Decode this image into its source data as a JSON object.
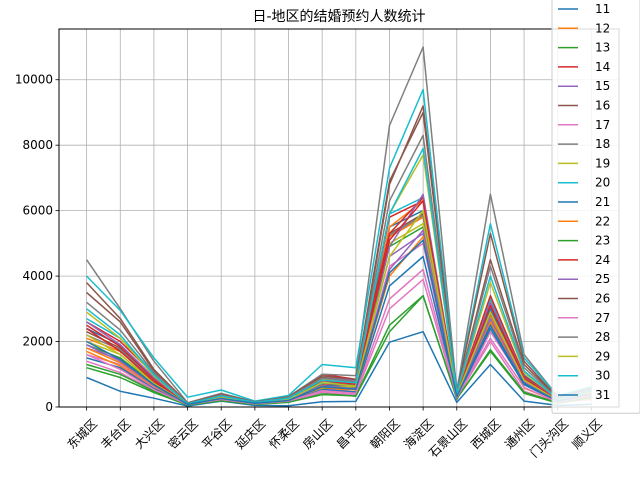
{
  "chart_data": {
    "type": "line",
    "title": "日-地区的结婚预约人数统计",
    "xlabel": "",
    "ylabel": "",
    "categories": [
      "东城区",
      "丰台区",
      "大兴区",
      "密云区",
      "平谷区",
      "延庆区",
      "怀柔区",
      "房山区",
      "昌平区",
      "朝阳区",
      "海淀区",
      "石景山区",
      "西城区",
      "通州区",
      "门头沟区",
      "顺义区"
    ],
    "yticks": [
      0,
      2000,
      4000,
      6000,
      8000,
      10000
    ],
    "ylim": [
      0,
      11550
    ],
    "grid": true,
    "legend_position": "top-right",
    "legend_visible": [
      "11",
      "12",
      "13",
      "14",
      "15",
      "16",
      "17",
      "18",
      "19",
      "20",
      "21",
      "22",
      "23",
      "24",
      "25",
      "26",
      "27",
      "28",
      "29",
      "30",
      "31"
    ],
    "series": [
      {
        "name": "",
        "color": "#1f77b4",
        "values": [
          2400,
          1900,
          900,
          80,
          300,
          150,
          200,
          650,
          700,
          5500,
          6000,
          280,
          3000,
          900,
          200,
          300
        ]
      },
      {
        "name": "",
        "color": "#ff7f0e",
        "values": [
          2100,
          1700,
          800,
          90,
          280,
          140,
          180,
          600,
          650,
          5200,
          5800,
          260,
          2800,
          850,
          180,
          280
        ]
      },
      {
        "name": "",
        "color": "#2ca02c",
        "values": [
          1900,
          1500,
          700,
          70,
          260,
          130,
          170,
          550,
          600,
          4900,
          5500,
          240,
          2600,
          800,
          170,
          260
        ]
      },
      {
        "name": "",
        "color": "#d62728",
        "values": [
          2600,
          2000,
          1000,
          100,
          320,
          160,
          220,
          700,
          750,
          5800,
          6300,
          300,
          3200,
          950,
          210,
          320
        ]
      },
      {
        "name": "",
        "color": "#9467bd",
        "values": [
          1800,
          1450,
          680,
          60,
          250,
          120,
          160,
          520,
          580,
          4600,
          5300,
          230,
          2500,
          780,
          160,
          250
        ]
      },
      {
        "name": "",
        "color": "#8c564b",
        "values": [
          2300,
          1800,
          850,
          75,
          290,
          145,
          190,
          620,
          680,
          5300,
          5900,
          270,
          2900,
          870,
          190,
          290
        ]
      },
      {
        "name": "",
        "color": "#e377c2",
        "values": [
          1600,
          1300,
          600,
          55,
          230,
          110,
          150,
          480,
          540,
          4300,
          5000,
          210,
          2300,
          720,
          150,
          230
        ]
      },
      {
        "name": "",
        "color": "#7f7f7f",
        "values": [
          2200,
          1750,
          820,
          70,
          285,
          140,
          185,
          610,
          670,
          5250,
          5850,
          265,
          2850,
          860,
          185,
          285
        ]
      },
      {
        "name": "",
        "color": "#bcbd22",
        "values": [
          2000,
          1600,
          750,
          65,
          270,
          135,
          175,
          580,
          630,
          5000,
          5600,
          250,
          2700,
          820,
          175,
          270
        ]
      },
      {
        "name": "",
        "color": "#17becf",
        "values": [
          2700,
          2100,
          1050,
          105,
          330,
          165,
          225,
          720,
          780,
          5900,
          6400,
          310,
          3300,
          980,
          220,
          330
        ]
      },
      {
        "name": "11",
        "color": "#1f77b4",
        "values": [
          900,
          480,
          270,
          30,
          180,
          50,
          40,
          160,
          170,
          1980,
          2300,
          140,
          1300,
          180,
          50,
          80
        ]
      },
      {
        "name": "12",
        "color": "#ff7f0e",
        "values": [
          1700,
          1250,
          560,
          95,
          220,
          95,
          180,
          650,
          420,
          5500,
          6300,
          340,
          2900,
          580,
          160,
          450
        ]
      },
      {
        "name": "13",
        "color": "#2ca02c",
        "values": [
          1200,
          900,
          440,
          60,
          190,
          80,
          140,
          430,
          330,
          2300,
          3400,
          260,
          1700,
          420,
          120,
          300
        ]
      },
      {
        "name": "14",
        "color": "#d62728",
        "values": [
          2500,
          1850,
          850,
          90,
          320,
          130,
          250,
          1000,
          850,
          5300,
          6400,
          400,
          3400,
          950,
          230,
          500
        ]
      },
      {
        "name": "15",
        "color": "#9467bd",
        "values": [
          2600,
          1900,
          900,
          95,
          330,
          140,
          260,
          900,
          820,
          4900,
          6500,
          380,
          3200,
          900,
          220,
          480
        ]
      },
      {
        "name": "16",
        "color": "#8c564b",
        "values": [
          3500,
          2600,
          1100,
          110,
          380,
          150,
          300,
          900,
          750,
          6800,
          9200,
          450,
          4500,
          1300,
          280,
          550
        ]
      },
      {
        "name": "17",
        "color": "#e377c2",
        "values": [
          1400,
          1050,
          500,
          70,
          220,
          90,
          170,
          450,
          380,
          3000,
          3900,
          280,
          2000,
          480,
          140,
          330
        ]
      },
      {
        "name": "18",
        "color": "#7f7f7f",
        "values": [
          4500,
          3000,
          1400,
          130,
          420,
          160,
          320,
          1000,
          960,
          8600,
          11000,
          480,
          6500,
          1600,
          330,
          600
        ]
      },
      {
        "name": "19",
        "color": "#bcbd22",
        "values": [
          2900,
          2100,
          950,
          100,
          350,
          140,
          280,
          850,
          720,
          5900,
          7700,
          420,
          3800,
          1050,
          250,
          520
        ]
      },
      {
        "name": "20",
        "color": "#17becf",
        "values": [
          4000,
          2950,
          1500,
          300,
          520,
          180,
          350,
          1300,
          1200,
          7300,
          9700,
          500,
          5600,
          1500,
          340,
          620
        ]
      },
      {
        "name": "21",
        "color": "#1f77b4",
        "values": [
          1500,
          1200,
          560,
          80,
          240,
          110,
          190,
          530,
          460,
          3700,
          4600,
          300,
          2400,
          680,
          170,
          380
        ]
      },
      {
        "name": "22",
        "color": "#ff7f0e",
        "values": [
          1800,
          1350,
          640,
          85,
          260,
          115,
          210,
          600,
          520,
          4000,
          5200,
          320,
          2600,
          740,
          180,
          400
        ]
      },
      {
        "name": "23",
        "color": "#2ca02c",
        "values": [
          1300,
          1000,
          480,
          65,
          200,
          85,
          150,
          380,
          340,
          2500,
          3400,
          250,
          1750,
          450,
          130,
          310
        ]
      },
      {
        "name": "24",
        "color": "#d62728",
        "values": [
          2400,
          1700,
          780,
          90,
          300,
          125,
          240,
          800,
          700,
          5100,
          6300,
          380,
          3100,
          880,
          210,
          470
        ]
      },
      {
        "name": "25",
        "color": "#9467bd",
        "values": [
          1900,
          1400,
          660,
          85,
          270,
          120,
          220,
          640,
          560,
          4200,
          5400,
          340,
          2700,
          770,
          190,
          420
        ]
      },
      {
        "name": "26",
        "color": "#8c564b",
        "values": [
          3800,
          2700,
          1150,
          115,
          390,
          155,
          310,
          950,
          840,
          6900,
          9000,
          460,
          5300,
          1400,
          290,
          560
        ]
      },
      {
        "name": "27",
        "color": "#e377c2",
        "values": [
          1600,
          1150,
          530,
          75,
          230,
          100,
          180,
          500,
          420,
          3300,
          4200,
          290,
          2100,
          600,
          150,
          350
        ]
      },
      {
        "name": "28",
        "color": "#7f7f7f",
        "values": [
          3200,
          2350,
          1050,
          105,
          360,
          145,
          290,
          880,
          780,
          6300,
          8300,
          440,
          4300,
          1200,
          260,
          530
        ]
      },
      {
        "name": "29",
        "color": "#bcbd22",
        "values": [
          2200,
          1600,
          720,
          90,
          290,
          125,
          230,
          750,
          640,
          4600,
          6000,
          360,
          2900,
          820,
          200,
          450
        ]
      },
      {
        "name": "30",
        "color": "#17becf",
        "values": [
          3000,
          2200,
          980,
          100,
          340,
          140,
          270,
          820,
          740,
          5900,
          7900,
          420,
          4000,
          1100,
          240,
          500
        ]
      },
      {
        "name": "31",
        "color": "#1f77b4",
        "values": [
          2000,
          1450,
          680,
          80,
          260,
          115,
          200,
          620,
          540,
          4100,
          5100,
          320,
          2500,
          720,
          180,
          400
        ]
      }
    ]
  }
}
